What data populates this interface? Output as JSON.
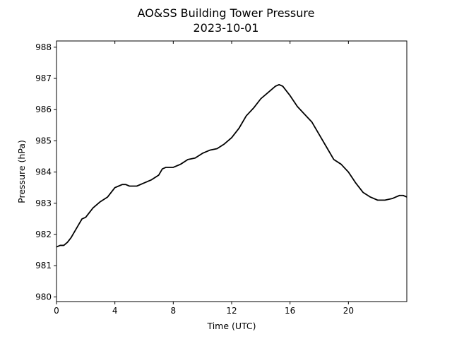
{
  "chart_data": {
    "type": "line",
    "title": "AO&SS Building Tower Pressure",
    "subtitle": "2023-10-01",
    "xlabel": "Time (UTC)",
    "ylabel": "Pressure (hPa)",
    "xlim": [
      0,
      24
    ],
    "ylim": [
      979.85,
      988.2
    ],
    "xticks": [
      0,
      4,
      8,
      12,
      16,
      20
    ],
    "xtick_labels": [
      "0",
      "4",
      "8",
      "12",
      "16",
      "20"
    ],
    "yticks": [
      980,
      981,
      982,
      983,
      984,
      985,
      986,
      987,
      988
    ],
    "ytick_labels": [
      "980",
      "981",
      "982",
      "983",
      "984",
      "985",
      "986",
      "987",
      "988"
    ],
    "grid": false,
    "line_color": "#000000",
    "series": [
      {
        "x": [
          0,
          0.25,
          0.5,
          0.75,
          1,
          1.25,
          1.5,
          1.75,
          2,
          2.5,
          3,
          3.5,
          4,
          4.25,
          4.5,
          4.75,
          5,
          5.25,
          5.5,
          6,
          6.5,
          7,
          7.25,
          7.5,
          8,
          8.5,
          9,
          9.5,
          10,
          10.5,
          11,
          11.5,
          12,
          12.5,
          13,
          13.5,
          14,
          14.5,
          15,
          15.25,
          15.5,
          16,
          16.5,
          17,
          17.5,
          18,
          18.5,
          19,
          19.5,
          20,
          20.5,
          21,
          21.5,
          22,
          22.5,
          23,
          23.25,
          23.5,
          23.75,
          24
        ],
        "y": [
          981.6,
          981.65,
          981.65,
          981.75,
          981.9,
          982.1,
          982.3,
          982.5,
          982.55,
          982.85,
          983.05,
          983.2,
          983.5,
          983.55,
          983.6,
          983.6,
          983.55,
          983.55,
          983.55,
          983.65,
          983.75,
          983.9,
          984.1,
          984.15,
          984.15,
          984.25,
          984.4,
          984.45,
          984.6,
          984.7,
          984.75,
          984.9,
          985.1,
          985.4,
          985.8,
          986.05,
          986.35,
          986.55,
          986.75,
          986.8,
          986.75,
          986.45,
          986.1,
          985.85,
          985.6,
          985.2,
          984.8,
          984.4,
          984.25,
          984.0,
          983.65,
          983.35,
          983.2,
          983.1,
          983.1,
          983.15,
          983.2,
          983.25,
          983.25,
          983.2
        ]
      }
    ]
  }
}
